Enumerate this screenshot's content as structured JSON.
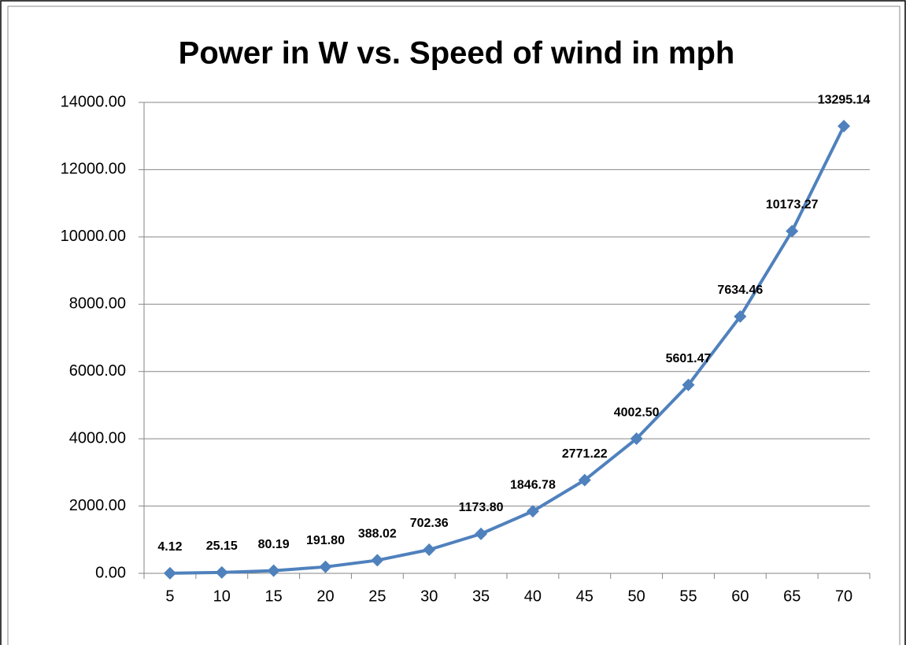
{
  "chart_data": {
    "type": "line",
    "title": "Power in W  vs. Speed of wind in mph",
    "categories": [
      "5",
      "10",
      "15",
      "20",
      "25",
      "30",
      "35",
      "40",
      "45",
      "50",
      "55",
      "60",
      "65",
      "70"
    ],
    "series": [
      {
        "name": "Power in W",
        "color": "#4f81bd",
        "values": [
          4.12,
          25.15,
          80.19,
          191.8,
          388.02,
          702.36,
          1173.8,
          1846.78,
          2771.22,
          4002.5,
          5601.47,
          7634.46,
          10173.27,
          13295.14
        ],
        "value_labels": [
          "4.12",
          "25.15",
          "80.19",
          "191.80",
          "388.02",
          "702.36",
          "1173.80",
          "1846.78",
          "2771.22",
          "4002.50",
          "5601.47",
          "7634.46",
          "10173.27",
          "13295.14"
        ]
      }
    ],
    "ylim": [
      0,
      14000
    ],
    "yticks": [
      {
        "value": 0,
        "label": "0.00"
      },
      {
        "value": 2000,
        "label": "2000.00"
      },
      {
        "value": 4000,
        "label": "4000.00"
      },
      {
        "value": 6000,
        "label": "6000.00"
      },
      {
        "value": 8000,
        "label": "8000.00"
      },
      {
        "value": 10000,
        "label": "10000.00"
      },
      {
        "value": 12000,
        "label": "12000.00"
      },
      {
        "value": 14000,
        "label": "14000.00"
      }
    ],
    "grid": true
  }
}
